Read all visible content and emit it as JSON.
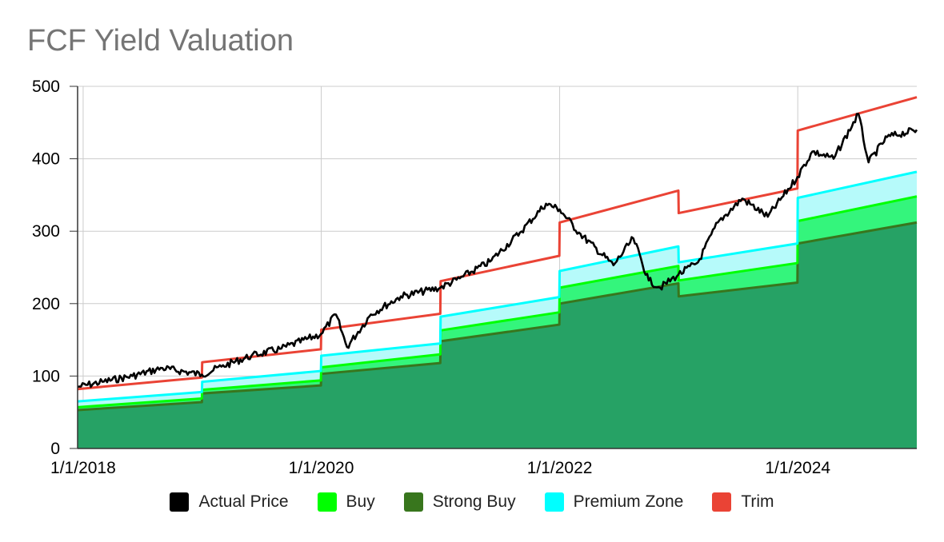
{
  "chart_data": {
    "type": "area",
    "title": "FCF Yield Valuation",
    "xlabel": "",
    "ylabel": "",
    "ylim": [
      0,
      500
    ],
    "xlim": [
      "2017-12-15",
      "2024-12-31"
    ],
    "y_ticks": [
      0,
      100,
      200,
      300,
      400,
      500
    ],
    "x_ticks": [
      {
        "date": "2018-01-01",
        "label": "1/1/2018"
      },
      {
        "date": "2020-01-01",
        "label": "1/1/2020"
      },
      {
        "date": "2022-01-01",
        "label": "1/1/2022"
      },
      {
        "date": "2024-01-01",
        "label": "1/1/2024"
      }
    ],
    "grid": true,
    "legend_position": "bottom",
    "series": [
      {
        "name": "Strong Buy",
        "color": "#38761d",
        "fill": "#26a265",
        "points": [
          [
            "2017-12-15",
            53
          ],
          [
            "2018-12-31",
            64
          ],
          [
            "2019-01-01",
            76
          ],
          [
            "2019-12-31",
            87
          ],
          [
            "2020-01-01",
            103
          ],
          [
            "2020-12-31",
            118
          ],
          [
            "2021-01-01",
            148
          ],
          [
            "2021-12-31",
            171
          ],
          [
            "2022-01-01",
            200
          ],
          [
            "2022-12-31",
            228
          ],
          [
            "2023-01-01",
            210
          ],
          [
            "2023-12-31",
            229
          ],
          [
            "2024-01-01",
            283
          ],
          [
            "2024-12-31",
            312
          ]
        ]
      },
      {
        "name": "Buy",
        "color": "#00ff00",
        "fill": "#34f57c",
        "points": [
          [
            "2017-12-15",
            57
          ],
          [
            "2018-12-31",
            69
          ],
          [
            "2019-01-01",
            81
          ],
          [
            "2019-12-31",
            94
          ],
          [
            "2020-01-01",
            112
          ],
          [
            "2020-12-31",
            130
          ],
          [
            "2021-01-01",
            163
          ],
          [
            "2021-12-31",
            188
          ],
          [
            "2022-01-01",
            222
          ],
          [
            "2022-12-31",
            252
          ],
          [
            "2023-01-01",
            232
          ],
          [
            "2023-12-31",
            256
          ],
          [
            "2024-01-01",
            314
          ],
          [
            "2024-12-31",
            348
          ]
        ]
      },
      {
        "name": "Premium Zone",
        "color": "#00ffff",
        "fill": "#b6fafa",
        "points": [
          [
            "2017-12-15",
            65
          ],
          [
            "2018-12-31",
            78
          ],
          [
            "2019-01-01",
            92
          ],
          [
            "2019-12-31",
            107
          ],
          [
            "2020-01-01",
            128
          ],
          [
            "2020-12-31",
            145
          ],
          [
            "2021-01-01",
            182
          ],
          [
            "2021-12-31",
            209
          ],
          [
            "2022-01-01",
            245
          ],
          [
            "2022-12-31",
            279
          ],
          [
            "2023-01-01",
            257
          ],
          [
            "2023-12-31",
            283
          ],
          [
            "2024-01-01",
            346
          ],
          [
            "2024-12-31",
            382
          ]
        ]
      },
      {
        "name": "Trim",
        "color": "#ea4335",
        "points": [
          [
            "2017-12-15",
            82
          ],
          [
            "2018-12-31",
            98
          ],
          [
            "2019-01-01",
            119
          ],
          [
            "2019-12-31",
            137
          ],
          [
            "2020-01-01",
            164
          ],
          [
            "2020-12-31",
            186
          ],
          [
            "2021-01-01",
            231
          ],
          [
            "2021-12-31",
            266
          ],
          [
            "2022-01-01",
            312
          ],
          [
            "2022-12-31",
            356
          ],
          [
            "2023-01-01",
            325
          ],
          [
            "2023-12-31",
            359
          ],
          [
            "2024-01-01",
            439
          ],
          [
            "2024-12-31",
            485
          ]
        ]
      },
      {
        "name": "Actual Price",
        "color": "#000000",
        "points": [
          [
            "2017-12-15",
            85
          ],
          [
            "2018-03-01",
            92
          ],
          [
            "2018-06-01",
            100
          ],
          [
            "2018-09-01",
            111
          ],
          [
            "2018-12-31",
            102
          ],
          [
            "2019-03-01",
            113
          ],
          [
            "2019-06-01",
            128
          ],
          [
            "2019-09-01",
            138
          ],
          [
            "2019-12-31",
            158
          ],
          [
            "2020-02-15",
            185
          ],
          [
            "2020-03-20",
            140
          ],
          [
            "2020-06-01",
            185
          ],
          [
            "2020-09-01",
            210
          ],
          [
            "2020-12-31",
            222
          ],
          [
            "2021-03-01",
            235
          ],
          [
            "2021-06-01",
            258
          ],
          [
            "2021-09-01",
            298
          ],
          [
            "2021-11-20",
            338
          ],
          [
            "2022-01-01",
            330
          ],
          [
            "2022-03-01",
            298
          ],
          [
            "2022-06-15",
            253
          ],
          [
            "2022-08-15",
            290
          ],
          [
            "2022-10-01",
            232
          ],
          [
            "2022-11-05",
            222
          ],
          [
            "2022-12-31",
            240
          ],
          [
            "2023-03-01",
            257
          ],
          [
            "2023-05-01",
            312
          ],
          [
            "2023-07-15",
            345
          ],
          [
            "2023-10-01",
            320
          ],
          [
            "2023-12-31",
            375
          ],
          [
            "2024-02-15",
            410
          ],
          [
            "2024-04-20",
            400
          ],
          [
            "2024-07-05",
            462
          ],
          [
            "2024-08-05",
            395
          ],
          [
            "2024-10-01",
            430
          ],
          [
            "2024-12-31",
            440
          ]
        ]
      }
    ]
  },
  "legend": [
    {
      "label": "Actual Price",
      "color": "#000000"
    },
    {
      "label": "Buy",
      "color": "#00ff00"
    },
    {
      "label": "Strong Buy",
      "color": "#38761d"
    },
    {
      "label": "Premium Zone",
      "color": "#00ffff"
    },
    {
      "label": "Trim",
      "color": "#ea4335"
    }
  ]
}
